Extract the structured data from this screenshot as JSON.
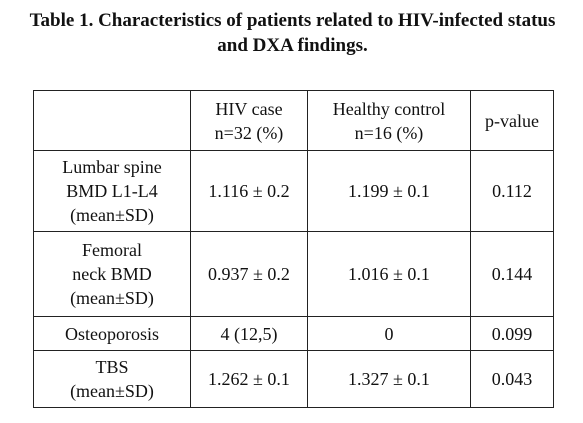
{
  "title": "Table 1. Characteristics of patients related to HIV-infected status and DXA findings.",
  "table": {
    "header": [
      [
        "HIV case",
        "n=32 (%)"
      ],
      [
        "Healthy control",
        "n=16 (%)"
      ],
      [
        "p-value"
      ]
    ],
    "rows": [
      [
        [
          "Lumbar spine",
          "BMD L1-L4",
          "(mean±SD)"
        ],
        [
          "1.116 ± 0.2"
        ],
        [
          "1.199 ± 0.1"
        ],
        [
          "0.112"
        ]
      ],
      [
        [
          "Femoral",
          "neck BMD",
          "(mean±SD)"
        ],
        [
          "0.937 ± 0.2"
        ],
        [
          "1.016 ± 0.1"
        ],
        [
          "0.144"
        ]
      ],
      [
        [
          "Osteoporosis"
        ],
        [
          "4 (12,5)"
        ],
        [
          "0"
        ],
        [
          "0.099"
        ]
      ],
      [
        [
          "TBS",
          "(mean±SD)"
        ],
        [
          "1.262 ± 0.1"
        ],
        [
          "1.327 ± 0.1"
        ],
        [
          "0.043"
        ]
      ]
    ]
  }
}
